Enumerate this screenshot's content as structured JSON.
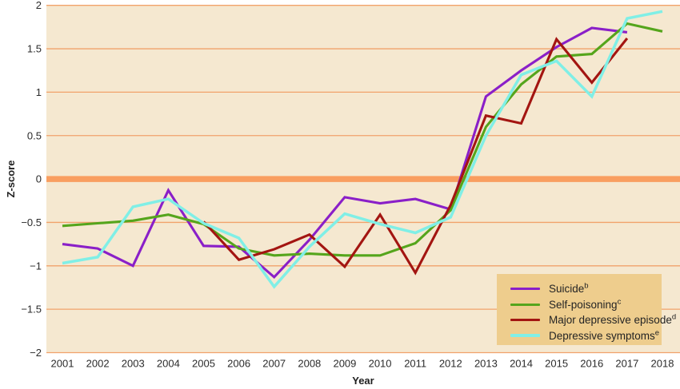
{
  "chart_data": {
    "type": "line",
    "title": "",
    "xlabel": "Year",
    "ylabel": "Z-score",
    "x": [
      2001,
      2002,
      2003,
      2004,
      2005,
      2006,
      2007,
      2008,
      2009,
      2010,
      2011,
      2012,
      2013,
      2014,
      2015,
      2016,
      2017,
      2018
    ],
    "ylim": [
      -2,
      2
    ],
    "ytick_values": [
      2,
      1.5,
      1,
      0.5,
      0,
      -0.5,
      -1,
      -1.5,
      -2
    ],
    "ytick_labels": [
      "2",
      "1.5",
      "1",
      "0.5",
      "0",
      "−0.5",
      "−1",
      "−1.5",
      "−2"
    ],
    "grid": true,
    "zero_line_highlighted": true,
    "legend_position": "bottom-right",
    "series": [
      {
        "name": "Suicide",
        "sup": "b",
        "color": "#8a1fc8",
        "values": [
          -0.75,
          -0.8,
          -1.0,
          -0.13,
          -0.77,
          -0.78,
          -1.13,
          -0.7,
          -0.21,
          -0.28,
          -0.23,
          -0.35,
          0.95,
          1.25,
          1.52,
          1.74,
          1.69,
          null
        ]
      },
      {
        "name": "Self-poisoning",
        "sup": "c",
        "color": "#55a51c",
        "values": [
          -0.54,
          -0.51,
          -0.48,
          -0.41,
          -0.52,
          -0.8,
          -0.88,
          -0.86,
          -0.88,
          -0.88,
          -0.74,
          -0.36,
          0.6,
          1.09,
          1.41,
          1.44,
          1.79,
          1.7
        ]
      },
      {
        "name": "Major depressive episode",
        "sup": "d",
        "color": "#a31511",
        "values": [
          null,
          null,
          null,
          null,
          -0.49,
          -0.93,
          -0.81,
          -0.64,
          -1.01,
          -0.41,
          -1.08,
          -0.3,
          0.73,
          0.64,
          1.61,
          1.11,
          1.62,
          null
        ]
      },
      {
        "name": "Depressive symptoms",
        "sup": "e",
        "color": "#80efe6",
        "values": [
          -0.97,
          -0.9,
          -0.32,
          -0.23,
          -0.51,
          -0.68,
          -1.24,
          -0.78,
          -0.4,
          -0.52,
          -0.62,
          -0.44,
          0.5,
          1.2,
          1.36,
          0.95,
          1.85,
          1.93
        ]
      }
    ],
    "style": {
      "plot_background": "#f5e8d0",
      "gridline_color": "#f1a26b",
      "zero_line_color": "#f99e60",
      "legend_background": "#eecd8d",
      "text_color": "#2b2b2b"
    }
  }
}
